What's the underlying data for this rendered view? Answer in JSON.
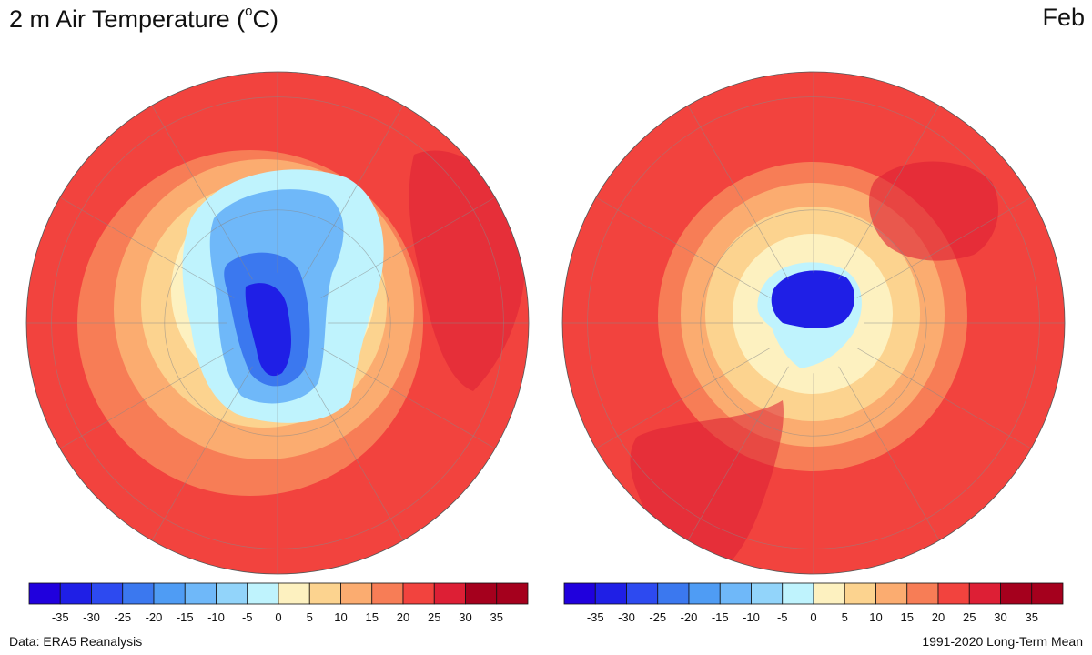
{
  "title": {
    "prefix": "2 m Air Temperature (",
    "superscript": "o",
    "suffix": "C)"
  },
  "month": "Feb",
  "footer": {
    "source": "Data: ERA5 Reanalysis",
    "period": "1991-2020 Long-Term Mean"
  },
  "chart_data": {
    "type": "heatmap",
    "title": "2 m Air Temperature (°C)",
    "month": "Feb",
    "projection": "polar stereographic",
    "panels": [
      {
        "hemisphere": "north",
        "center": "North Pole",
        "range_c": [
          -40,
          35
        ]
      },
      {
        "hemisphere": "south",
        "center": "South Pole",
        "range_c": [
          -40,
          35
        ]
      }
    ],
    "colorbar": {
      "tick_labels": [
        "-35",
        "-30",
        "-25",
        "-20",
        "-15",
        "-10",
        "-5",
        "0",
        "5",
        "10",
        "15",
        "20",
        "25",
        "30",
        "35"
      ],
      "colors": [
        "#2000dd",
        "#1f1fe6",
        "#2d4af0",
        "#3b78ef",
        "#4f9cf4",
        "#6fb8f9",
        "#92d4fa",
        "#bff3fd",
        "#fdf1c0",
        "#fcd38f",
        "#fbac70",
        "#f77d56",
        "#f2433e",
        "#dd1f35",
        "#a5001d"
      ]
    }
  }
}
